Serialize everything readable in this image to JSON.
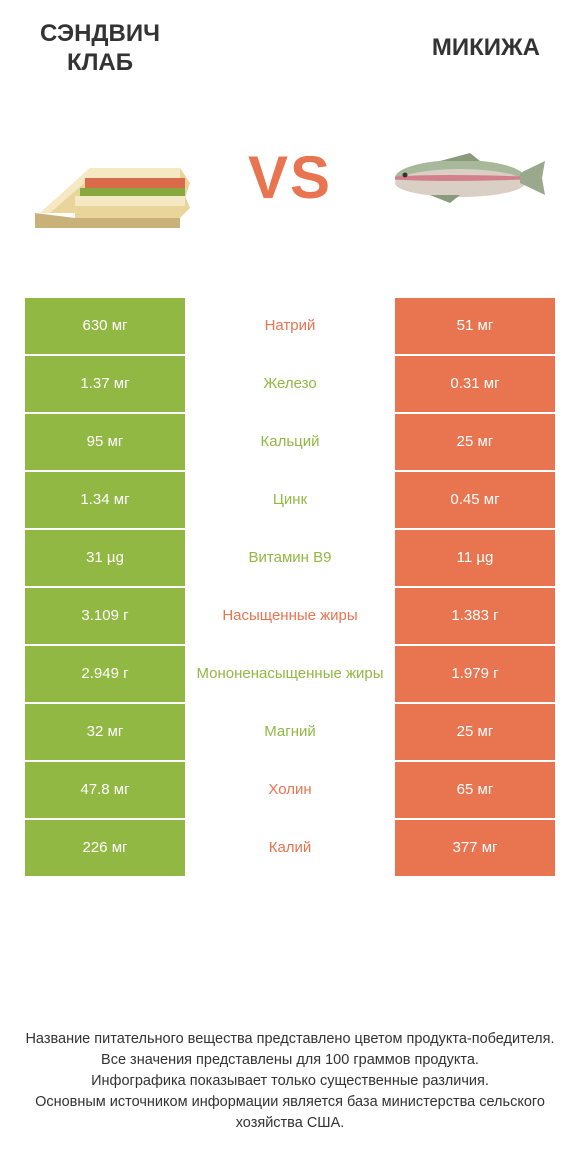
{
  "colors": {
    "green": "#92b844",
    "orange": "#e97450",
    "text": "#333333",
    "white": "#ffffff"
  },
  "header": {
    "left_title": "СЭНДВИЧ\nКЛАБ",
    "right_title": "МИКИЖА",
    "vs": "VS"
  },
  "rows": [
    {
      "left": "630 мг",
      "mid": "Натрий",
      "right": "51 мг",
      "winner": "right"
    },
    {
      "left": "1.37 мг",
      "mid": "Железо",
      "right": "0.31 мг",
      "winner": "left"
    },
    {
      "left": "95 мг",
      "mid": "Кальций",
      "right": "25 мг",
      "winner": "left"
    },
    {
      "left": "1.34 мг",
      "mid": "Цинк",
      "right": "0.45 мг",
      "winner": "left"
    },
    {
      "left": "31 µg",
      "mid": "Витамин B9",
      "right": "11 µg",
      "winner": "left"
    },
    {
      "left": "3.109 г",
      "mid": "Насыщенные жиры",
      "right": "1.383 г",
      "winner": "right"
    },
    {
      "left": "2.949 г",
      "mid": "Мононенасыщенные жиры",
      "right": "1.979 г",
      "winner": "left"
    },
    {
      "left": "32 мг",
      "mid": "Магний",
      "right": "25 мг",
      "winner": "left"
    },
    {
      "left": "47.8 мг",
      "mid": "Холин",
      "right": "65 мг",
      "winner": "right"
    },
    {
      "left": "226 мг",
      "mid": "Калий",
      "right": "377 мг",
      "winner": "right"
    }
  ],
  "footer": {
    "line1": "Название питательного вещества представлено цветом продукта-победителя.",
    "line2": "Все значения представлены для 100 граммов продукта.",
    "line3": "Инфографика показывает только существенные различия.",
    "line4": "Основным источником информации является база министерства сельского хозяйства США."
  }
}
